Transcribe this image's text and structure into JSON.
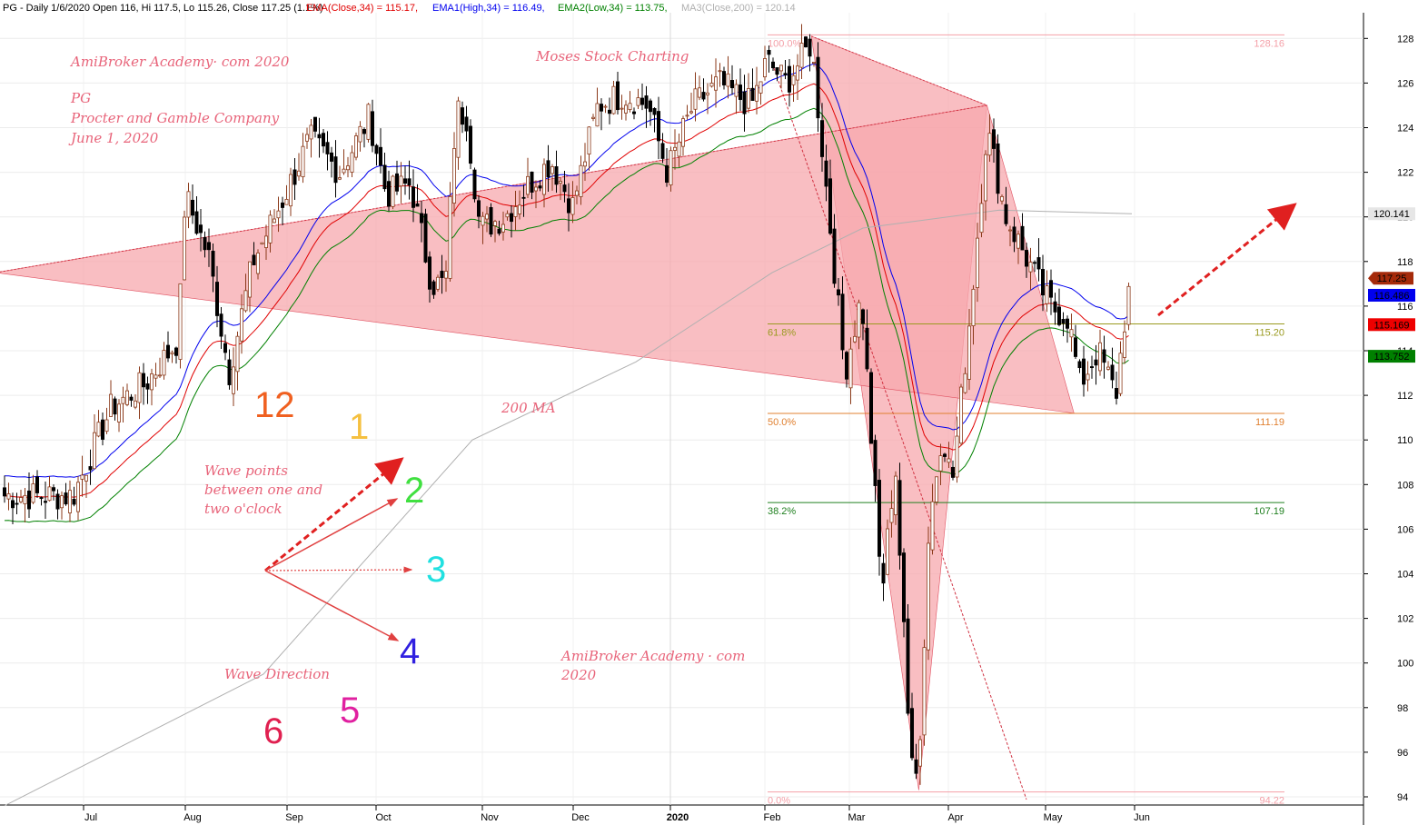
{
  "header": {
    "symbol_line": "PG - Daily 1/6/2020 Open 116, Hi 117.5, Lo 115.26, Close 117.25 (1.1%)",
    "ema": "EMA(Close,34) = 115.17,",
    "ema1": "EMA1(High,34) = 116.49,",
    "ema2": "EMA2(Low,34) = 113.75,",
    "ma3": "MA3(Close,200) = 120.14"
  },
  "annotations": {
    "site_top": "AmiBroker Academy· com 2020",
    "moses": "Moses Stock Charting",
    "ticker": "PG",
    "company": "Procter and Gamble Company",
    "date": "June 1, 2020",
    "ma_label": "200 MA",
    "wave_points": [
      "Wave points",
      "between one and",
      "two o'clock"
    ],
    "wave_direction": "Wave Direction",
    "site_bottom": [
      "AmiBroker Academy · com",
      "2020"
    ]
  },
  "clock_numbers": [
    {
      "label": "12",
      "color": "#f06020"
    },
    {
      "label": "1",
      "color": "#f5c040"
    },
    {
      "label": "2",
      "color": "#40e040"
    },
    {
      "label": "3",
      "color": "#20e0e0"
    },
    {
      "label": "4",
      "color": "#3020e0"
    },
    {
      "label": "5",
      "color": "#e020a0"
    },
    {
      "label": "6",
      "color": "#e02050"
    }
  ],
  "price_boxes": [
    {
      "value": "120.141",
      "bg": "#e6e6e6",
      "fg": "#000000"
    },
    {
      "value": "117.25",
      "bg": "#a52a0a",
      "fg": "#ffffff"
    },
    {
      "value": "116.486",
      "bg": "#0000ee",
      "fg": "#ffffff"
    },
    {
      "value": "115.169",
      "bg": "#ee0000",
      "fg": "#ffffff"
    },
    {
      "value": "113.752",
      "bg": "#008000",
      "fg": "#ffffff"
    }
  ],
  "chart_data": {
    "type": "candlestick",
    "y_axis": {
      "range": [
        94,
        128.5
      ],
      "ticks": [
        94,
        96,
        98,
        100,
        102,
        104,
        106,
        108,
        110,
        112,
        114,
        116,
        118,
        120,
        122,
        124,
        126,
        128
      ]
    },
    "x_labels": [
      "Jul",
      "Aug",
      "Sep",
      "Oct",
      "Nov",
      "Dec",
      "2020",
      "Feb",
      "Mar",
      "Apr",
      "May",
      "Jun"
    ],
    "fibonacci": [
      {
        "level": "100.0%",
        "price": 128.16,
        "price_label": "128.16",
        "color": "#f4a0a8"
      },
      {
        "level": "61.8%",
        "price": 115.2,
        "price_label": "115.20",
        "color": "#9a9a20"
      },
      {
        "level": "50.0%",
        "price": 111.19,
        "price_label": "111.19",
        "color": "#e08030"
      },
      {
        "level": "38.2%",
        "price": 107.19,
        "price_label": "107.19",
        "color": "#208020"
      },
      {
        "level": "0.0%",
        "price": 94.22,
        "price_label": "94.22",
        "color": "#f4a0a8"
      }
    ],
    "harmonic_pattern": [
      {
        "date": "Feb 19",
        "price": 128.1
      },
      {
        "date": "Mar 23",
        "price": 94.3
      },
      {
        "date": "Apr 14",
        "price": 125.0
      },
      {
        "date": "May 12",
        "price": 111.2
      },
      {
        "date": "Jun 1",
        "price": 117.5
      }
    ],
    "series": [
      {
        "name": "EMA(Close,34)",
        "color": "#e00000",
        "last": 115.17
      },
      {
        "name": "EMA1(High,34)",
        "color": "#0000ee",
        "last": 116.49
      },
      {
        "name": "EMA2(Low,34)",
        "color": "#008000",
        "last": 113.75
      },
      {
        "name": "MA3(Close,200)",
        "color": "#b0b0b0",
        "last": 120.14
      }
    ],
    "close_path": [
      [
        "Jun 28",
        107.5
      ],
      [
        "Jul 10",
        111.5
      ],
      [
        "Jul 20",
        112.5
      ],
      [
        "Jul 30",
        114.5
      ],
      [
        "Aug 2",
        121.0
      ],
      [
        "Aug 9",
        118.2
      ],
      [
        "Aug 15",
        113.0
      ],
      [
        "Aug 22",
        118.0
      ],
      [
        "Aug 30",
        120.5
      ],
      [
        "Sep 10",
        123.5
      ],
      [
        "Sep 20",
        122.0
      ],
      [
        "Sep 30",
        124.5
      ],
      [
        "Oct 5",
        121.0
      ],
      [
        "Oct 12",
        121.5
      ],
      [
        "Oct 18",
        117.0
      ],
      [
        "Oct 22",
        117.0
      ],
      [
        "Oct 25",
        124.8
      ],
      [
        "Oct 28",
        124.5
      ],
      [
        "Nov 2",
        119.5
      ],
      [
        "Nov 10",
        120.0
      ],
      [
        "Nov 18",
        121.5
      ],
      [
        "Nov 25",
        122.5
      ],
      [
        "Dec 2",
        120.5
      ],
      [
        "Dec 10",
        125.0
      ],
      [
        "Dec 18",
        125.5
      ],
      [
        "Dec 26",
        125.0
      ],
      [
        "Jan 2",
        122.0
      ],
      [
        "Jan 10",
        125.0
      ],
      [
        "Jan 18",
        126.0
      ],
      [
        "Jan 28",
        125.0
      ],
      [
        "Feb 3",
        127.0
      ],
      [
        "Feb 10",
        126.0
      ],
      [
        "Feb 19",
        127.8
      ],
      [
        "Feb 25",
        120.5
      ],
      [
        "Mar 1",
        113.0
      ],
      [
        "Mar 6",
        116.5
      ],
      [
        "Mar 12",
        103.0
      ],
      [
        "Mar 16",
        109.0
      ],
      [
        "Mar 20",
        97.0
      ],
      [
        "Mar 23",
        95.0
      ],
      [
        "Mar 26",
        106.0
      ],
      [
        "Mar 30",
        110.5
      ],
      [
        "Apr 3",
        108.0
      ],
      [
        "Apr 9",
        116.0
      ],
      [
        "Apr 14",
        124.0
      ],
      [
        "Apr 20",
        120.0
      ],
      [
        "Apr 27",
        118.0
      ],
      [
        "May 4",
        116.0
      ],
      [
        "May 10",
        115.5
      ],
      [
        "May 14",
        112.5
      ],
      [
        "May 20",
        114.0
      ],
      [
        "May 26",
        112.0
      ],
      [
        "May 29",
        115.5
      ],
      [
        "Jun 1",
        117.25
      ]
    ]
  }
}
